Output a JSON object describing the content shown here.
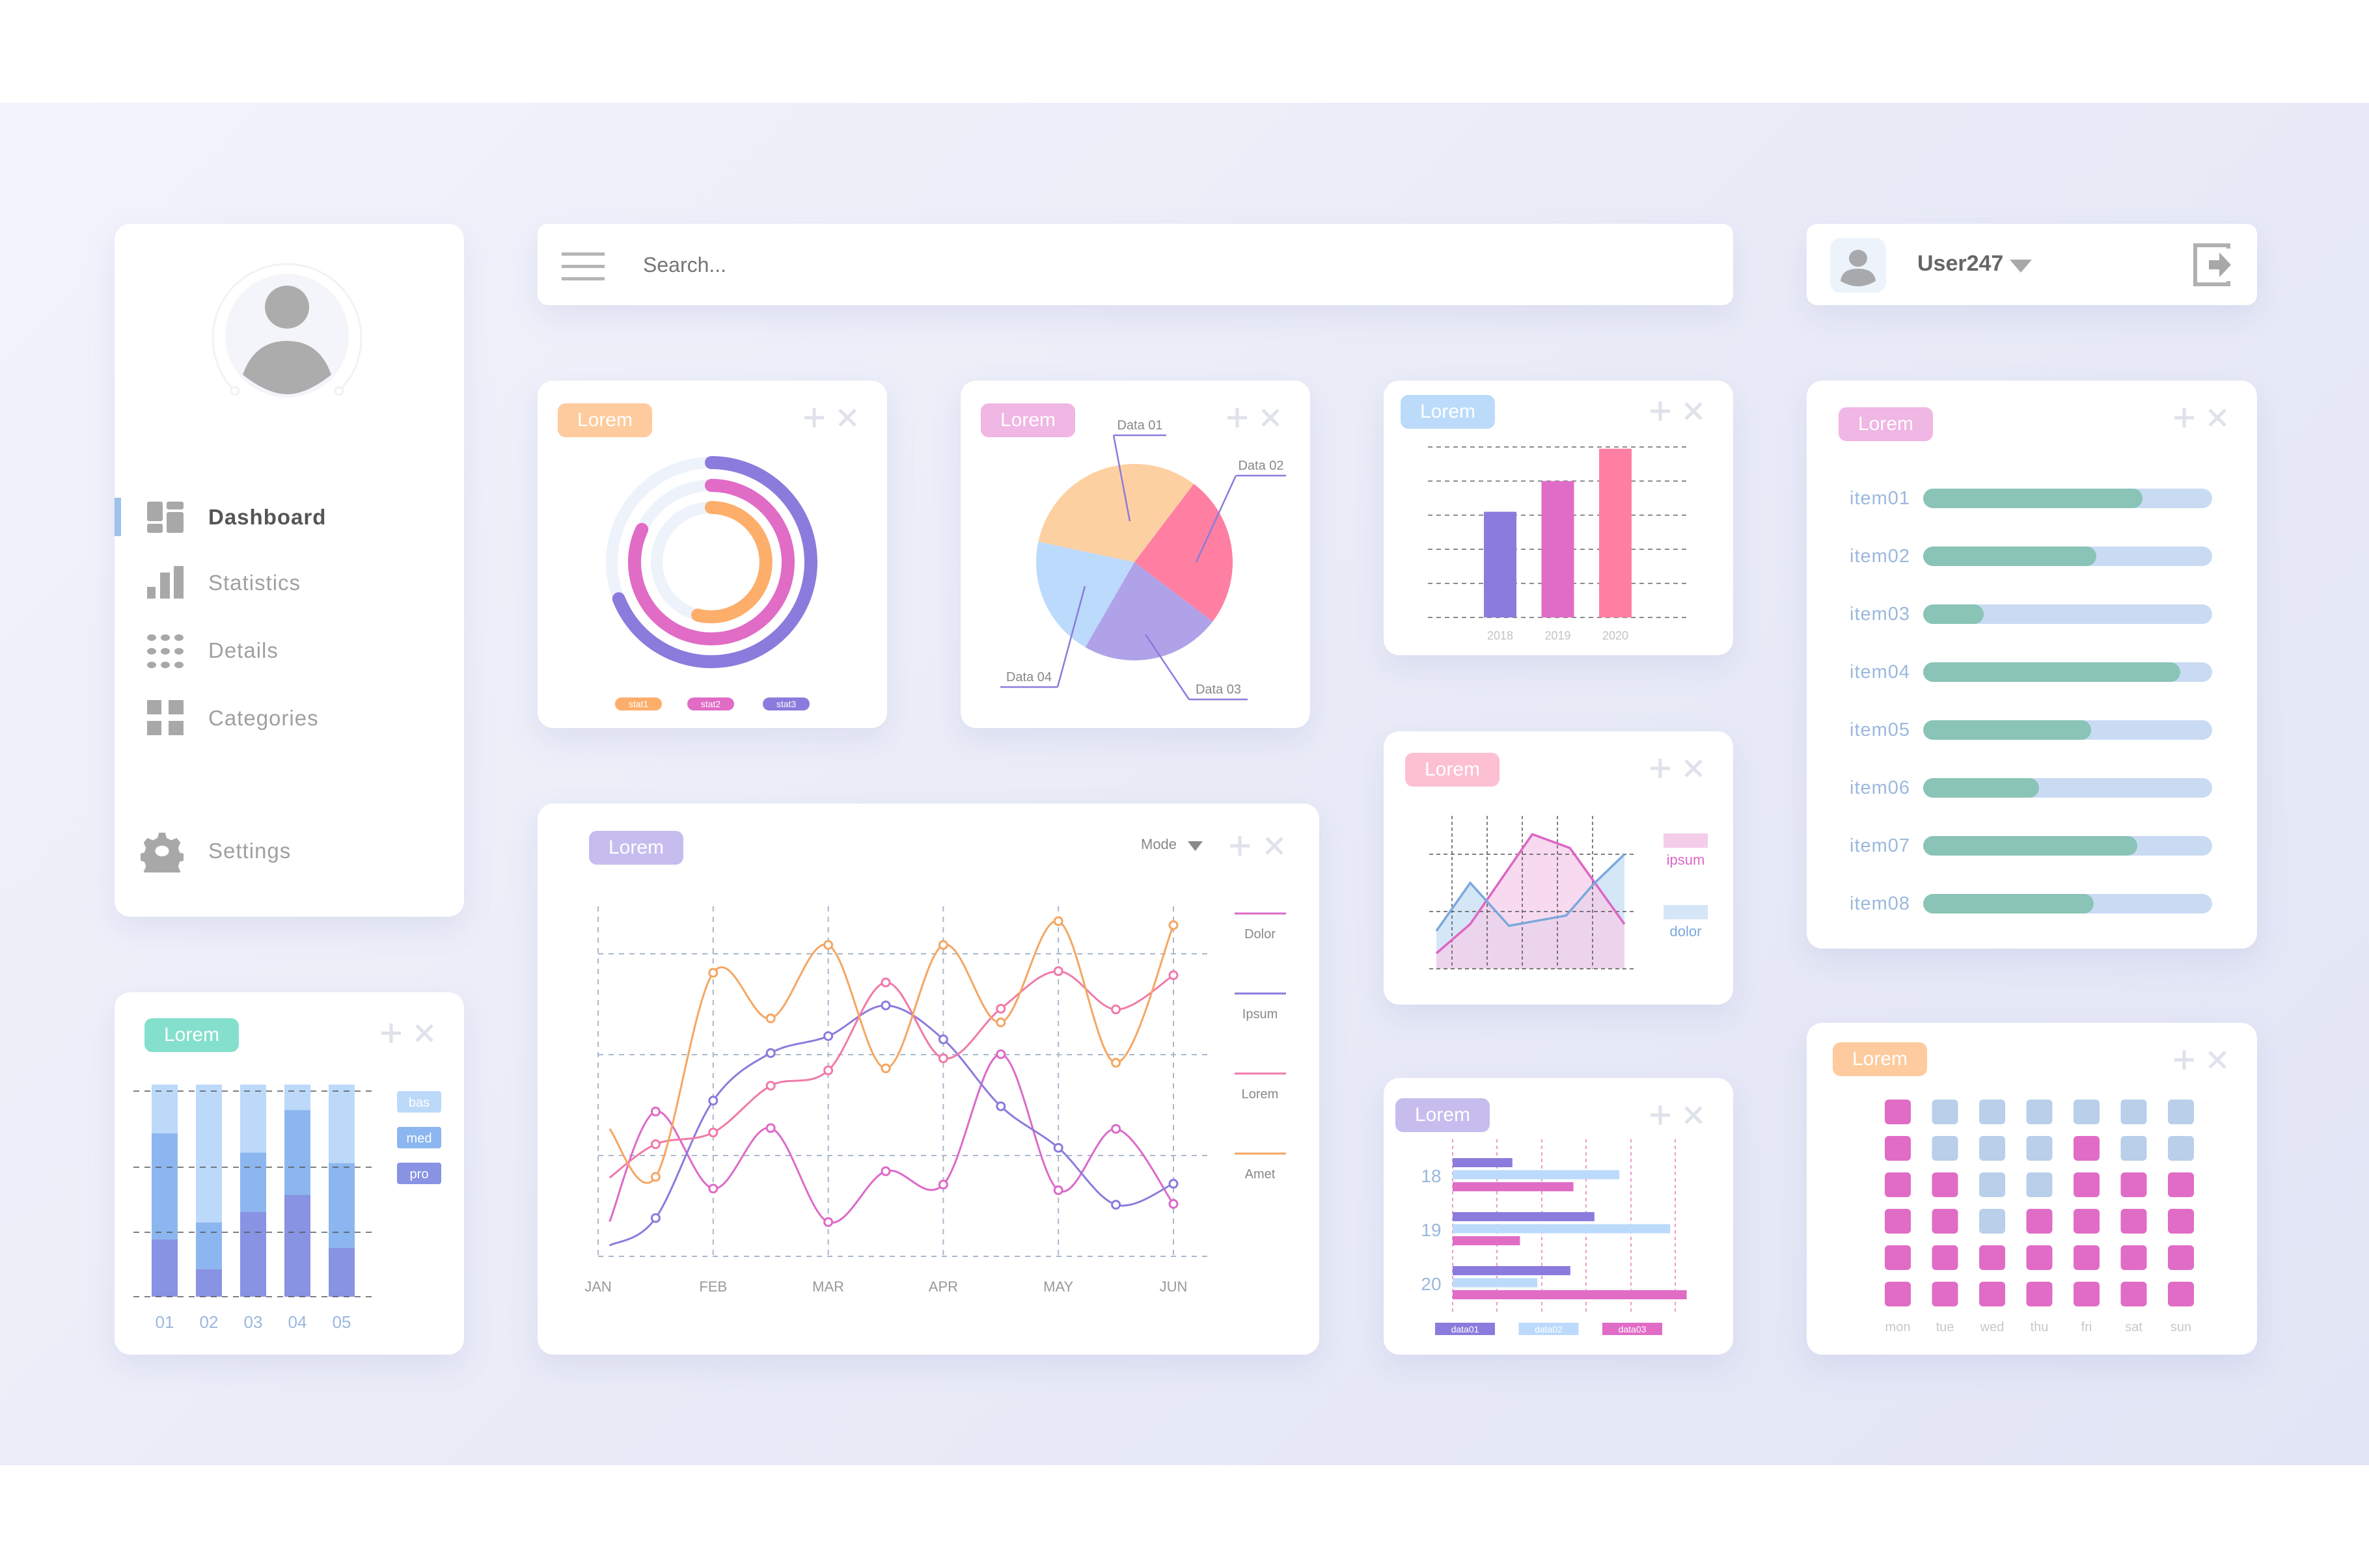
{
  "sidebar": {
    "items": [
      {
        "label": "Dashboard",
        "icon": "dashboard-icon",
        "active": true
      },
      {
        "label": "Statistics",
        "icon": "bar-chart-icon",
        "active": false
      },
      {
        "label": "Details",
        "icon": "dots-grid-icon",
        "active": false
      },
      {
        "label": "Categories",
        "icon": "categories-icon",
        "active": false
      }
    ],
    "settings": {
      "label": "Settings",
      "icon": "gear-icon"
    }
  },
  "search": {
    "placeholder": "Search...",
    "menu_icon": "hamburger-icon"
  },
  "user": {
    "name": "User247",
    "icons": [
      "avatar-icon",
      "caret-down-icon",
      "logout-icon"
    ]
  },
  "cards": {
    "donut": {
      "title": "Lorem",
      "color": "#fdcb9d"
    },
    "pie": {
      "title": "Lorem",
      "color": "#f0b6e4"
    },
    "bar": {
      "title": "Lorem",
      "color": "#bcdbfa"
    },
    "progress": {
      "title": "Lorem",
      "color": "#f0b6e4"
    },
    "stacked": {
      "title": "Lorem",
      "color": "#84e0cc"
    },
    "line": {
      "title": "Lorem",
      "color": "#c6bdee",
      "mode_label": "Mode"
    },
    "area": {
      "title": "Lorem",
      "color": "#fcc0d2"
    },
    "hbar": {
      "title": "Lorem",
      "color": "#c6bdee"
    },
    "heatmap": {
      "title": "Lorem",
      "color": "#fdcb9d"
    }
  },
  "progress_items": [
    {
      "label": "item01",
      "value": 76
    },
    {
      "label": "item02",
      "value": 60
    },
    {
      "label": "item03",
      "value": 21
    },
    {
      "label": "item04",
      "value": 89
    },
    {
      "label": "item05",
      "value": 58
    },
    {
      "label": "item06",
      "value": 40
    },
    {
      "label": "item07",
      "value": 74
    },
    {
      "label": "item08",
      "value": 59
    }
  ],
  "colors": {
    "progress_fill": "#89c4b6",
    "progress_track": "#c9dbf3",
    "accent": "#9fc2ec"
  },
  "chart_data": [
    {
      "id": "donut",
      "type": "radial-bar",
      "categories": [
        "stat1",
        "stat2",
        "stat3"
      ],
      "values": [
        54,
        82,
        69
      ],
      "unit": "%",
      "colors": [
        "#fdae6b",
        "#e06cc6",
        "#8b7bdc"
      ]
    },
    {
      "id": "pie",
      "type": "pie",
      "categories": [
        "Data 01",
        "Data 02",
        "Data 03",
        "Data 04"
      ],
      "values": [
        32,
        25,
        23,
        20
      ],
      "colors": [
        "#fdd0a2",
        "#fe7fa2",
        "#b0a2e8",
        "#bcdafb"
      ]
    },
    {
      "id": "bar",
      "type": "bar",
      "categories": [
        "2018",
        "2019",
        "2020"
      ],
      "values": [
        62,
        80,
        99
      ],
      "ylim": [
        0,
        100
      ],
      "grid": true,
      "colors": [
        "#8b7bdc",
        "#e06cc6",
        "#fe7fa2"
      ]
    },
    {
      "id": "stacked",
      "type": "bar",
      "stacked": true,
      "categories": [
        "01",
        "02",
        "03",
        "04",
        "05"
      ],
      "series": [
        {
          "name": "pro",
          "values": [
            27,
            13,
            40,
            48,
            23
          ],
          "color": "#8893e3"
        },
        {
          "name": "med",
          "values": [
            50,
            22,
            28,
            40,
            40
          ],
          "color": "#8cb6ef"
        },
        {
          "name": "bas",
          "values": [
            23,
            65,
            32,
            12,
            37
          ],
          "color": "#bcd9fa"
        }
      ],
      "ylim": [
        0,
        100
      ],
      "grid": true,
      "legend": "right"
    },
    {
      "id": "line",
      "type": "line",
      "xticks": [
        "JAN",
        "FEB",
        "MAR",
        "APR",
        "MAY",
        "JUN"
      ],
      "x": [
        0.1,
        0.5,
        1,
        1.5,
        2,
        2.5,
        3,
        3.5,
        4,
        4.5,
        5
      ],
      "ylim": [
        0,
        100
      ],
      "grid": true,
      "legend": "right",
      "series": [
        {
          "name": "Dolor",
          "color": "#dd6ac8",
          "values": [
            8.6,
            35.9,
            16.8,
            31.8,
            8.5,
            21.1,
            17.8,
            50.1,
            16.4,
            31.6,
            13
          ]
        },
        {
          "name": "Ipsum",
          "color": "#8c7bdc",
          "values": [
            2.7,
            9.5,
            38.6,
            50.4,
            54.6,
            62.2,
            53.8,
            37.2,
            26.9,
            12.8,
            18
          ]
        },
        {
          "name": "Lorem",
          "color": "#f07aa8",
          "values": [
            19.5,
            27.8,
            30.7,
            42.3,
            46.1,
            67.9,
            49.1,
            61.4,
            70.7,
            61.2,
            69.7
          ]
        },
        {
          "name": "Amet",
          "color": "#f5a662",
          "values": [
            31.6,
            19.7,
            70.3,
            59,
            77.2,
            46.6,
            77.2,
            58,
            83.1,
            48,
            82.1
          ]
        }
      ]
    },
    {
      "id": "area",
      "type": "area",
      "grid": true,
      "legend": "right",
      "series": [
        {
          "name": "ipsum",
          "color": "#dd66c4",
          "fill": "#f4cdea",
          "x": [
            0,
            18,
            51,
            71,
            100
          ],
          "values": [
            2.7,
            7.8,
            23.5,
            21.1,
            7.8
          ]
        },
        {
          "name": "dolor",
          "color": "#7aa8dc",
          "fill": "#d5e6f6",
          "x": [
            0,
            18,
            38.6,
            69,
            83.6,
            100
          ],
          "values": [
            6.6,
            15,
            7.5,
            9.3,
            14.8,
            20
          ]
        }
      ]
    },
    {
      "id": "hbar",
      "type": "bar",
      "orientation": "horizontal",
      "categories": [
        "18",
        "19",
        "20"
      ],
      "grid": true,
      "legend": "bottom",
      "series": [
        {
          "name": "data01",
          "color": "#8b7bdc",
          "values": [
            13.4,
            31.8,
            26.4
          ]
        },
        {
          "name": "data02",
          "color": "#bcdafb",
          "values": [
            37.4,
            48.8,
            19.0
          ]
        },
        {
          "name": "data03",
          "color": "#e06cc6",
          "values": [
            27.1,
            15.1,
            52.5
          ]
        }
      ]
    },
    {
      "id": "heatmap",
      "type": "heatmap",
      "xticks": [
        "mon",
        "tue",
        "wed",
        "thu",
        "fri",
        "sat",
        "sun"
      ],
      "colors": {
        "on": "#e06cc6",
        "off": "#b9cfea"
      },
      "values": [
        [
          1,
          0,
          0,
          0,
          0,
          0,
          0
        ],
        [
          1,
          0,
          0,
          0,
          1,
          0,
          0
        ],
        [
          1,
          1,
          0,
          0,
          1,
          1,
          1
        ],
        [
          1,
          1,
          0,
          1,
          1,
          1,
          1
        ],
        [
          1,
          1,
          1,
          1,
          1,
          1,
          1
        ],
        [
          1,
          1,
          1,
          1,
          1,
          1,
          1
        ]
      ]
    }
  ]
}
